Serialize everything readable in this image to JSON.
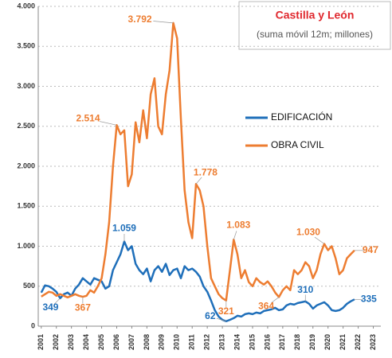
{
  "chart_data": {
    "type": "line",
    "title": "Castilla y León",
    "subtitle": "(suma móvil 12m; millones)",
    "x": [
      2001,
      2001.25,
      2001.5,
      2001.75,
      2002,
      2002.25,
      2002.5,
      2002.75,
      2003,
      2003.25,
      2003.5,
      2003.75,
      2004,
      2004.25,
      2004.5,
      2004.75,
      2005,
      2005.25,
      2005.5,
      2005.75,
      2006,
      2006.25,
      2006.5,
      2006.75,
      2007,
      2007.25,
      2007.5,
      2007.75,
      2008,
      2008.25,
      2008.5,
      2008.75,
      2009,
      2009.25,
      2009.5,
      2009.75,
      2010,
      2010.25,
      2010.5,
      2010.75,
      2011,
      2011.25,
      2011.5,
      2011.75,
      2012,
      2012.25,
      2012.5,
      2012.75,
      2013,
      2013.25,
      2013.5,
      2013.75,
      2014,
      2014.25,
      2014.5,
      2014.75,
      2015,
      2015.25,
      2015.5,
      2015.75,
      2016,
      2016.25,
      2016.5,
      2016.75,
      2017,
      2017.25,
      2017.5,
      2017.75,
      2018,
      2018.25,
      2018.5,
      2018.75,
      2019,
      2019.25,
      2019.5,
      2019.75,
      2020,
      2020.25,
      2020.5,
      2020.75,
      2021,
      2021.25,
      2021.5,
      2021.75
    ],
    "series": [
      {
        "name": "EDIFICACIÓN",
        "color": "#1f6fba",
        "values": [
          420,
          510,
          500,
          470,
          430,
          349,
          400,
          420,
          380,
          470,
          520,
          600,
          560,
          520,
          600,
          580,
          560,
          470,
          500,
          700,
          800,
          900,
          1059,
          950,
          1000,
          780,
          700,
          650,
          720,
          560,
          700,
          750,
          680,
          780,
          640,
          700,
          720,
          600,
          750,
          700,
          720,
          680,
          620,
          500,
          430,
          320,
          200,
          120,
          80,
          62,
          80,
          100,
          130,
          120,
          150,
          160,
          150,
          170,
          160,
          190,
          200,
          210,
          230,
          200,
          210,
          260,
          280,
          270,
          290,
          300,
          310,
          280,
          220,
          260,
          280,
          300,
          260,
          200,
          190,
          200,
          230,
          280,
          310,
          335
        ],
        "value_labels": [
          null,
          null,
          null,
          null,
          null,
          "349",
          null,
          null,
          null,
          null,
          null,
          null,
          null,
          null,
          null,
          null,
          null,
          null,
          null,
          null,
          null,
          null,
          "1.059",
          null,
          null,
          null,
          null,
          null,
          null,
          null,
          null,
          null,
          null,
          null,
          null,
          null,
          null,
          null,
          null,
          null,
          null,
          null,
          null,
          null,
          null,
          null,
          null,
          null,
          null,
          "62",
          null,
          null,
          null,
          null,
          null,
          null,
          null,
          null,
          null,
          null,
          null,
          null,
          null,
          null,
          null,
          null,
          null,
          null,
          null,
          null,
          "310",
          null,
          null,
          null,
          null,
          null,
          null,
          null,
          null,
          null,
          null,
          null,
          null,
          "335"
        ]
      },
      {
        "name": "OBRA CIVIL",
        "color": "#ed7d31",
        "values": [
          370,
          400,
          430,
          420,
          380,
          400,
          380,
          360,
          380,
          400,
          380,
          367,
          380,
          450,
          420,
          500,
          600,
          900,
          1300,
          2000,
          2514,
          2400,
          2450,
          1750,
          1900,
          2550,
          2300,
          2700,
          2350,
          2900,
          3100,
          2500,
          2400,
          2900,
          3200,
          3792,
          3600,
          2600,
          1700,
          1300,
          1100,
          1778,
          1700,
          1500,
          1000,
          600,
          500,
          400,
          350,
          321,
          700,
          1083,
          900,
          600,
          700,
          550,
          500,
          600,
          550,
          520,
          560,
          500,
          420,
          364,
          450,
          500,
          450,
          700,
          650,
          700,
          800,
          750,
          600,
          700,
          900,
          1030,
          950,
          1000,
          850,
          650,
          700,
          850,
          900,
          947
        ],
        "value_labels": [
          null,
          null,
          null,
          null,
          null,
          null,
          null,
          null,
          null,
          null,
          null,
          "367",
          null,
          null,
          null,
          null,
          null,
          null,
          null,
          null,
          "2.514",
          null,
          null,
          null,
          null,
          null,
          null,
          null,
          null,
          null,
          null,
          null,
          null,
          null,
          null,
          "3.792",
          null,
          null,
          null,
          null,
          null,
          "1.778",
          null,
          null,
          null,
          null,
          null,
          null,
          null,
          "321",
          null,
          "1.083",
          null,
          null,
          null,
          null,
          null,
          null,
          null,
          null,
          null,
          null,
          null,
          "364",
          null,
          null,
          null,
          null,
          null,
          null,
          null,
          null,
          null,
          null,
          null,
          "1.030",
          null,
          null,
          null,
          null,
          null,
          null,
          null,
          "947"
        ]
      }
    ],
    "xlim": [
      2000.8,
      2023.5
    ],
    "xticks": [
      2001,
      2002,
      2003,
      2004,
      2005,
      2006,
      2007,
      2008,
      2009,
      2010,
      2011,
      2012,
      2013,
      2014,
      2015,
      2016,
      2017,
      2018,
      2019,
      2020,
      2021,
      2022,
      2023
    ],
    "ylim": [
      0,
      4000
    ],
    "yticks": [
      0,
      {
        "value": 500,
        "label": "500"
      },
      {
        "value": 1000,
        "label": "1.000"
      },
      {
        "value": 1500,
        "label": "1.500"
      },
      {
        "value": 2000,
        "label": "2.000"
      },
      {
        "value": 2500,
        "label": "2.500"
      },
      {
        "value": 3000,
        "label": "3.000"
      },
      {
        "value": 3500,
        "label": "3.500"
      },
      {
        "value": 4000,
        "label": "4.000"
      }
    ],
    "grid": true
  }
}
